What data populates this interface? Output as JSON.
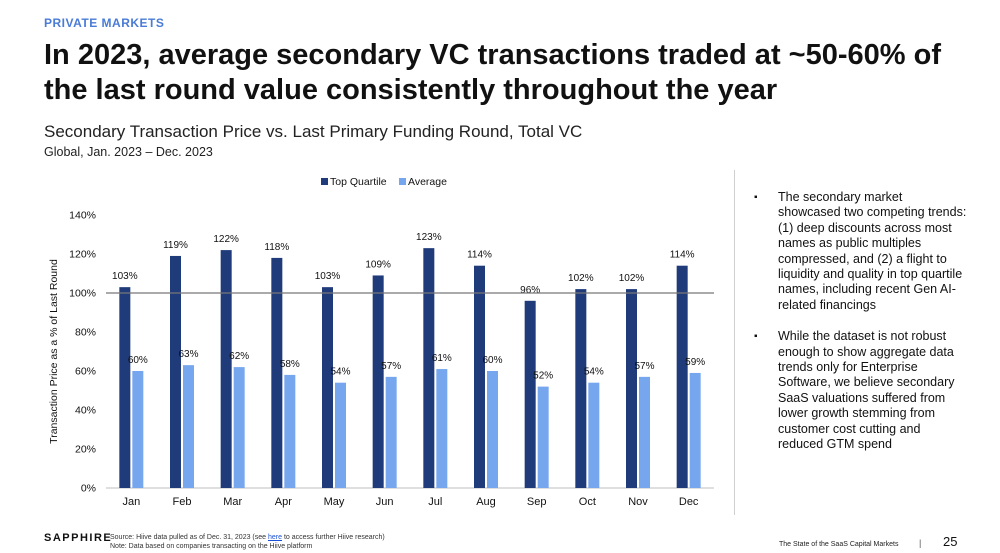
{
  "header": {
    "eyebrow": "PRIVATE MARKETS",
    "headline": "In 2023, average secondary VC transactions traded at ~50-60% of the last round value consistently throughout the year"
  },
  "chart_header": {
    "title": "Secondary Transaction Price vs. Last Primary Funding Round, Total VC",
    "subtitle": "Global, Jan. 2023 – Dec. 2023"
  },
  "chart_data": {
    "type": "bar",
    "categories": [
      "Jan",
      "Feb",
      "Mar",
      "Apr",
      "May",
      "Jun",
      "Jul",
      "Aug",
      "Sep",
      "Oct",
      "Nov",
      "Dec"
    ],
    "series": [
      {
        "name": "Top Quartile",
        "color": "#1f3b7a",
        "values": [
          103,
          119,
          122,
          118,
          103,
          109,
          123,
          114,
          96,
          102,
          102,
          114
        ]
      },
      {
        "name": "Average",
        "color": "#76a7ee",
        "values": [
          60,
          63,
          62,
          58,
          54,
          57,
          61,
          60,
          52,
          54,
          57,
          59
        ]
      }
    ],
    "ylabel": "Transaction Price as a % of Last Round",
    "ylim": [
      0,
      140
    ],
    "yticks": [
      0,
      20,
      40,
      60,
      80,
      100,
      120,
      140
    ],
    "value_suffix": "%",
    "reference_line": 100,
    "legend_position": "top",
    "grid": false
  },
  "bullets": [
    "The secondary market showcased two competing trends: (1) deep discounts across most names as public multiples compressed, and (2) a flight to liquidity and quality in top quartile names, including recent Gen AI-related financings",
    "While the dataset is not robust enough to show aggregate data trends only for Enterprise Software, we believe secondary SaaS valuations suffered from lower growth stemming from customer cost cutting and reduced GTM spend"
  ],
  "bullet_marker": "▪",
  "footer": {
    "logo": "SAPPHIRE",
    "source_prefix": "Source: Hiive data pulled as of Dec. 31, 2023 (see ",
    "source_link": "here",
    "source_suffix": " to access further Hiive research)",
    "note": "Note: Data based on companies transacting on the Hiive platform",
    "report_title": "The State of the SaaS Capital Markets",
    "separator": "|",
    "page_number": "25"
  }
}
